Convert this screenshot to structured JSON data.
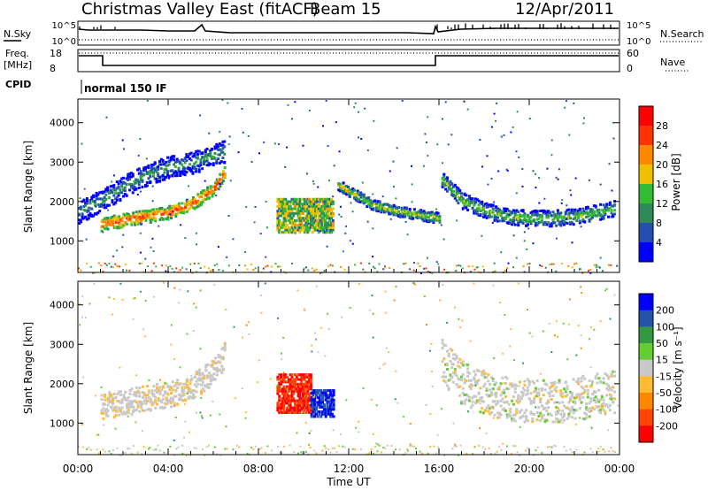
{
  "header": {
    "station": "Christmas Valley East (fitACF)",
    "beam": "Beam 15",
    "date": "12/Apr/2011"
  },
  "strips": {
    "nsky_label": "N.Sky",
    "nsky_ticks": [
      "10^5",
      "10^0"
    ],
    "nsearch_label": "N.Search",
    "nsearch_ticks": [
      "10^5",
      "10^0"
    ],
    "freq_label": "Freq.",
    "freq_unit": "[MHz]",
    "freq_ticks": [
      18,
      8
    ],
    "nave_label": "Nave",
    "nave_ticks": [
      60,
      0
    ],
    "cpid_label": "CPID",
    "cpid_value": "normal 150 IF"
  },
  "chart_data": [
    {
      "type": "heatmap",
      "panel": "power",
      "ylabel": "Slant Range [km]",
      "yticks": [
        1000,
        2000,
        3000,
        4000
      ],
      "ylim": [
        200,
        4600
      ],
      "xlim": [
        0,
        24
      ],
      "colorbar": {
        "label": "Power [dB]",
        "ticks": [
          4,
          8,
          12,
          16,
          20,
          24,
          28
        ],
        "colors": [
          "#0000ff",
          "#234fae",
          "#2e8b57",
          "#33bb33",
          "#eec000",
          "#ff8800",
          "#ff3300",
          "#ff0000"
        ]
      },
      "features": [
        {
          "type": "band",
          "x": [
            1,
            2,
            3,
            4,
            5,
            6,
            6.5
          ],
          "y": [
            1450,
            1550,
            1650,
            1750,
            1950,
            2350,
            2800
          ],
          "level": 26,
          "width": 150
        },
        {
          "type": "band",
          "x": [
            0,
            1,
            2,
            3,
            4,
            5,
            6,
            6.5
          ],
          "y": [
            1750,
            2050,
            2400,
            2700,
            2900,
            3000,
            3200,
            3300
          ],
          "level": 12,
          "width": 250
        },
        {
          "type": "blob",
          "x": [
            8.8,
            11.3
          ],
          "y": [
            1250,
            2100
          ],
          "level": 14
        },
        {
          "type": "band",
          "x": [
            11.5,
            13,
            14,
            15,
            16
          ],
          "y": [
            2450,
            1950,
            1800,
            1700,
            1600
          ],
          "level": 18,
          "width": 120
        },
        {
          "type": "band",
          "x": [
            16.1,
            17,
            18,
            19,
            20,
            21,
            22,
            23,
            23.8
          ],
          "y": [
            2600,
            2050,
            1800,
            1650,
            1600,
            1600,
            1650,
            1750,
            1850
          ],
          "level": 16,
          "width": 180
        }
      ]
    },
    {
      "type": "heatmap",
      "panel": "velocity",
      "xlabel": "Time UT",
      "ylabel": "Slant Range [km]",
      "xticks": [
        "00:00",
        "04:00",
        "08:00",
        "12:00",
        "16:00",
        "20:00",
        "00:00"
      ],
      "yticks": [
        1000,
        2000,
        3000,
        4000
      ],
      "ylim": [
        200,
        4600
      ],
      "xlim": [
        0,
        24
      ],
      "colorbar": {
        "label": "Velocity [m s⁻¹]",
        "ticks": [
          200,
          100,
          50,
          15,
          -15,
          -50,
          -100,
          -200
        ],
        "colors": [
          "#0000ff",
          "#2255aa",
          "#339944",
          "#66cc33",
          "#c8c8c8",
          "#ffbb33",
          "#ff8800",
          "#ff4400",
          "#ff0000"
        ]
      },
      "features": [
        {
          "type": "band",
          "x": [
            1,
            2,
            3,
            4,
            5,
            6,
            6.5
          ],
          "y": [
            1450,
            1550,
            1650,
            1750,
            1950,
            2350,
            2800
          ],
          "velocity": -5,
          "width": 300
        },
        {
          "type": "blob",
          "x": [
            8.8,
            10.3
          ],
          "y": [
            1300,
            2300
          ],
          "velocity": -200
        },
        {
          "type": "blob",
          "x": [
            10.3,
            11.3
          ],
          "y": [
            1200,
            1900
          ],
          "velocity": 200
        },
        {
          "type": "band",
          "x": [
            16.1,
            17,
            18,
            19,
            20,
            21,
            22,
            23,
            23.8
          ],
          "y": [
            2600,
            2050,
            1800,
            1650,
            1600,
            1600,
            1650,
            1750,
            1850
          ],
          "velocity": 0,
          "width": 500
        }
      ]
    }
  ]
}
